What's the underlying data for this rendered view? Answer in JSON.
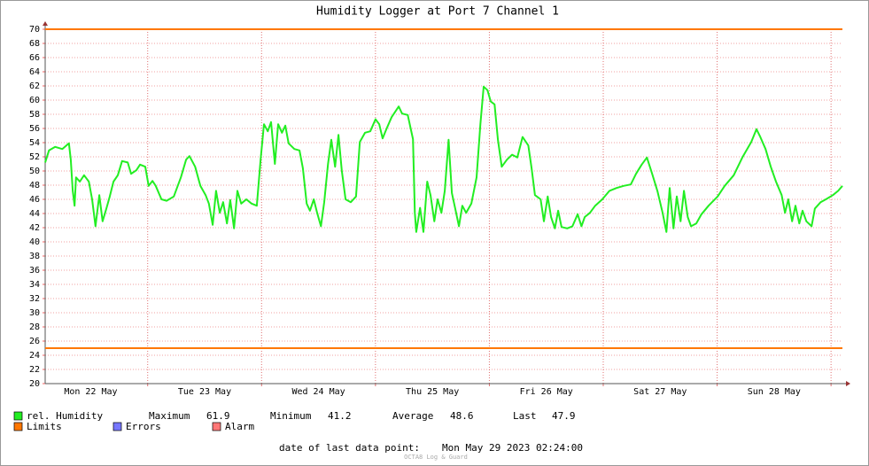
{
  "chart_data": {
    "type": "line",
    "title": "Humidity Logger at Port 7 Channel 1",
    "x": [
      2.4,
      3.2,
      4.5,
      6.0,
      7.4,
      7.8,
      8.2,
      8.6,
      8.9,
      9.7,
      10.6,
      11.6,
      12.3,
      13.0,
      13.8,
      14.5,
      15.3,
      16.0,
      16.8,
      17.7,
      18.6,
      19.8,
      20.5,
      21.6,
      22.4,
      23.5,
      24.2,
      25.0,
      25.7,
      26.9,
      28.0,
      29.5,
      31.0,
      32.1,
      32.8,
      34.0,
      35.1,
      36.2,
      36.9,
      37.7,
      38.4,
      39.2,
      39.9,
      40.7,
      41.4,
      42.2,
      42.9,
      43.7,
      44.8,
      45.9,
      47.0,
      47.8,
      48.5,
      49.3,
      50.0,
      50.8,
      51.5,
      52.3,
      53.0,
      53.7,
      54.9,
      56.0,
      56.7,
      57.5,
      58.2,
      59.0,
      59.7,
      60.5,
      61.2,
      62.0,
      62.7,
      63.5,
      64.2,
      64.9,
      65.7,
      66.8,
      67.9,
      68.7,
      69.8,
      70.9,
      72.0,
      72.8,
      73.5,
      74.3,
      75.4,
      76.9,
      77.6,
      78.8,
      79.9,
      80.3,
      80.6,
      81.4,
      82.1,
      82.9,
      83.6,
      84.4,
      85.1,
      85.9,
      86.6,
      87.4,
      88.1,
      88.8,
      89.6,
      90.3,
      91.1,
      92.2,
      93.3,
      94.1,
      94.8,
      95.6,
      96.3,
      97.1,
      97.8,
      98.6,
      99.7,
      100.8,
      101.9,
      103.0,
      104.2,
      104.9,
      105.6,
      106.8,
      107.5,
      108.3,
      109.0,
      109.8,
      110.5,
      111.2,
      112.4,
      113.5,
      114.6,
      115.4,
      116.1,
      117.2,
      118.3,
      119.8,
      121.3,
      122.8,
      124.3,
      125.8,
      126.9,
      128.1,
      129.2,
      130.3,
      131.4,
      132.5,
      133.3,
      134.0,
      134.8,
      135.5,
      136.3,
      137.0,
      137.8,
      138.5,
      139.6,
      140.7,
      142.2,
      144.1,
      145.6,
      147.5,
      149.3,
      151.2,
      152.3,
      153.1,
      154.2,
      155.3,
      156.4,
      157.6,
      158.3,
      159.0,
      159.8,
      160.5,
      161.3,
      162.0,
      162.8,
      163.9,
      164.6,
      165.8,
      166.9,
      168.4,
      169.5,
      170.4
    ],
    "series": [
      {
        "name": "rel. Humidity",
        "color": "#22ee22",
        "values": [
          51.2,
          52.9,
          53.4,
          53.1,
          53.9,
          51.6,
          47.2,
          45.1,
          49.1,
          48.5,
          49.4,
          48.5,
          46.0,
          42.2,
          46.6,
          42.9,
          44.7,
          46.4,
          48.5,
          49.4,
          51.4,
          51.2,
          49.6,
          50.1,
          50.9,
          50.6,
          47.9,
          48.6,
          47.9,
          46.0,
          45.8,
          46.4,
          49.1,
          51.6,
          52.1,
          50.6,
          47.9,
          46.6,
          45.4,
          42.4,
          47.2,
          44.1,
          45.6,
          42.6,
          45.9,
          41.9,
          47.2,
          45.4,
          46.0,
          45.4,
          45.1,
          51.6,
          56.6,
          55.6,
          56.9,
          51.0,
          56.6,
          55.4,
          56.4,
          53.9,
          53.1,
          52.9,
          50.4,
          45.4,
          44.4,
          46.0,
          44.1,
          42.2,
          45.6,
          51.0,
          54.4,
          50.6,
          55.1,
          50.1,
          46.0,
          45.6,
          46.4,
          54.1,
          55.4,
          55.6,
          57.3,
          56.6,
          54.6,
          55.9,
          57.6,
          59.1,
          58.1,
          57.9,
          54.5,
          44.1,
          41.4,
          44.8,
          41.4,
          48.5,
          46.6,
          42.9,
          46.0,
          44.1,
          47.2,
          54.4,
          46.9,
          44.7,
          42.2,
          45.1,
          44.1,
          45.4,
          49.1,
          56.6,
          61.9,
          61.4,
          59.8,
          59.4,
          54.4,
          50.6,
          51.6,
          52.3,
          51.9,
          54.8,
          53.6,
          50.4,
          46.6,
          46.0,
          42.9,
          46.4,
          43.5,
          41.9,
          44.4,
          42.1,
          41.9,
          42.2,
          43.9,
          42.2,
          43.5,
          44.1,
          45.1,
          46.0,
          47.2,
          47.6,
          47.9,
          48.1,
          49.6,
          50.9,
          51.9,
          49.6,
          47.2,
          44.1,
          41.4,
          47.6,
          41.9,
          46.4,
          42.9,
          47.2,
          43.5,
          42.2,
          42.6,
          43.9,
          45.1,
          46.4,
          47.9,
          49.4,
          51.9,
          54.1,
          55.9,
          54.8,
          53.1,
          50.6,
          48.5,
          46.6,
          44.1,
          46.0,
          42.9,
          45.1,
          42.6,
          44.4,
          42.9,
          42.2,
          44.7,
          45.6,
          46.0,
          46.6,
          47.2,
          47.9
        ]
      }
    ],
    "limits": {
      "name": "Limits",
      "color": "#ff7700",
      "values": [
        70,
        25
      ]
    },
    "legend_extra": [
      {
        "name": "Errors",
        "color": "#7777ff"
      },
      {
        "name": "Alarm",
        "color": "#ff7777"
      }
    ],
    "stats": [
      {
        "label": "Maximum",
        "value": 61.9
      },
      {
        "label": "Minimum",
        "value": 41.2
      },
      {
        "label": "Average",
        "value": 48.6
      },
      {
        "label": "Last",
        "value": 47.9
      }
    ],
    "xlim": [
      2.4,
      170.4
    ],
    "xticks": [
      {
        "value": 12,
        "label": "Mon 22 May"
      },
      {
        "value": 36,
        "label": "Tue 23 May"
      },
      {
        "value": 60,
        "label": "Wed 24 May"
      },
      {
        "value": 84,
        "label": "Thu 25 May"
      },
      {
        "value": 108,
        "label": "Fri 26 May"
      },
      {
        "value": 132,
        "label": "Sat 27 May"
      },
      {
        "value": 156,
        "label": "Sun 28 May"
      }
    ],
    "xgrid": [
      24,
      48,
      72,
      96,
      120,
      144,
      168
    ],
    "ylim": [
      20,
      70
    ],
    "yticks": [
      20,
      22,
      24,
      26,
      28,
      30,
      32,
      34,
      36,
      38,
      40,
      42,
      44,
      46,
      48,
      50,
      52,
      54,
      56,
      58,
      60,
      62,
      64,
      66,
      68,
      70
    ],
    "grid": true,
    "footer_label": "date of last data point:",
    "footer_value": "Mon May 29 2023 02:24:00",
    "watermark": "OCTA8 Log & Guard"
  }
}
